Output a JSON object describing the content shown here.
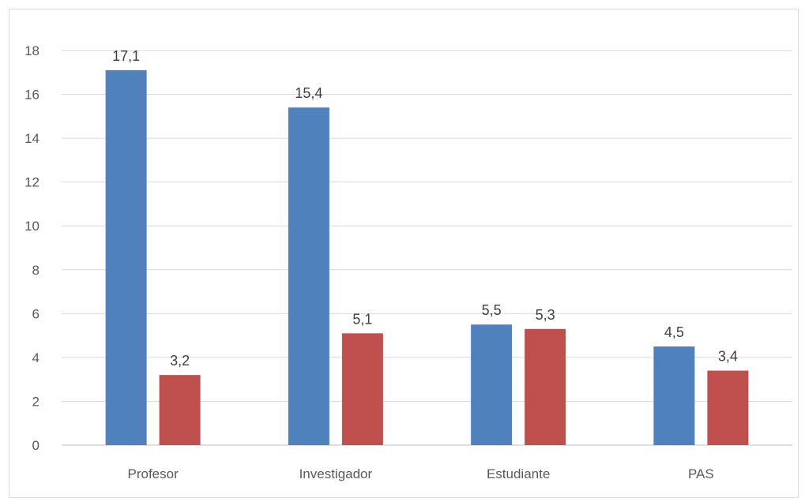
{
  "chart_data": {
    "type": "bar",
    "title": "",
    "xlabel": "",
    "ylabel": "",
    "categories": [
      "Profesor",
      "Investigador",
      "Estudiante",
      "PAS"
    ],
    "series": [
      {
        "values": [
          17.1,
          15.4,
          5.5,
          4.5
        ],
        "labels": [
          "17,1",
          "15,4",
          "5,5",
          "4,5"
        ],
        "color": "#4f81bd"
      },
      {
        "values": [
          3.2,
          5.1,
          5.3,
          3.4
        ],
        "labels": [
          "3,2",
          "5,1",
          "5,3",
          "3,4"
        ],
        "color": "#c0504d"
      }
    ],
    "ylim": [
      0,
      18
    ],
    "yticks": [
      0,
      2,
      4,
      6,
      8,
      10,
      12,
      14,
      16,
      18
    ],
    "grid": true,
    "legend": "none"
  }
}
